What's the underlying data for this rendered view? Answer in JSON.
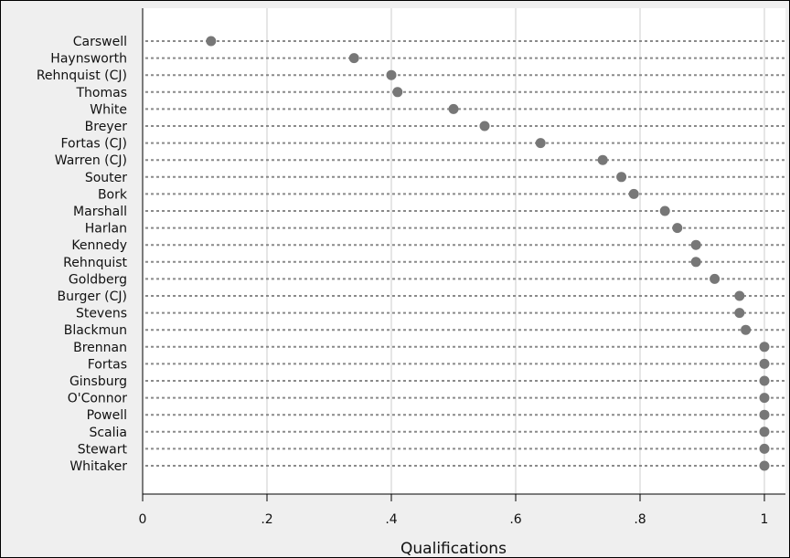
{
  "chart_data": {
    "type": "dot",
    "xlabel": "Qualifications",
    "xlim": [
      0,
      1.03
    ],
    "xticks": [
      {
        "value": 0,
        "label": "0"
      },
      {
        "value": 0.2,
        "label": ".2"
      },
      {
        "value": 0.4,
        "label": ".4"
      },
      {
        "value": 0.6,
        "label": ".6"
      },
      {
        "value": 0.8,
        "label": ".8"
      },
      {
        "value": 1,
        "label": "1"
      }
    ],
    "grid": true,
    "categories": [
      "Carswell",
      "Haynsworth",
      "Rehnquist (CJ)",
      "Thomas",
      "White",
      "Breyer",
      "Fortas (CJ)",
      "Warren (CJ)",
      "Souter",
      "Bork",
      "Marshall",
      "Harlan",
      "Kennedy",
      "Rehnquist",
      "Goldberg",
      "Burger (CJ)",
      "Stevens",
      "Blackmun",
      "Brennan",
      "Fortas",
      "Ginsburg",
      "O'Connor",
      "Powell",
      "Scalia",
      "Stewart",
      "Whitaker"
    ],
    "values": [
      0.11,
      0.34,
      0.4,
      0.41,
      0.5,
      0.55,
      0.64,
      0.74,
      0.77,
      0.79,
      0.84,
      0.86,
      0.89,
      0.89,
      0.92,
      0.96,
      0.96,
      0.97,
      1.0,
      1.0,
      1.0,
      1.0,
      1.0,
      1.0,
      1.0,
      1.0
    ],
    "colors": {
      "marker": "#777777",
      "dotted_line": "#8a8a8a",
      "plot_bg": "#ffffff",
      "grid": "#e6e6e6"
    }
  }
}
